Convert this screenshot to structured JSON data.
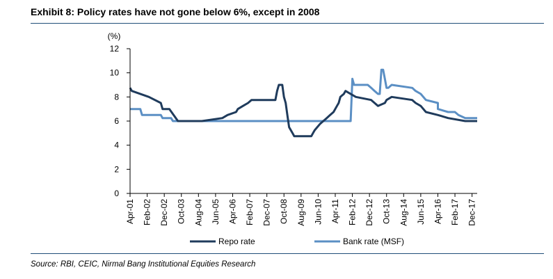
{
  "title": "Exhibit 8: Policy rates have not gone below 6%, except in 2008",
  "source": "Source: RBI, CEIC, Nirmal Bang Institutional Equities Research",
  "colors": {
    "repo": "#1f3b5c",
    "bank": "#5b8fc4",
    "rule": "#1f4e79"
  },
  "chart_data": {
    "type": "line",
    "ylabel": "(%)",
    "ylim": [
      0,
      12
    ],
    "yticks": [
      "0",
      "2",
      "4",
      "6",
      "8",
      "10",
      "12"
    ],
    "x_ticks": [
      "Apr-01",
      "Feb-02",
      "Dec-02",
      "Oct-03",
      "Aug-04",
      "Jun-05",
      "Apr-06",
      "Feb-07",
      "Dec-07",
      "Oct-08",
      "Aug-09",
      "Jun-10",
      "Apr-11",
      "Feb-12",
      "Dec-12",
      "Oct-13",
      "Aug-14",
      "Jun-15",
      "Apr-16",
      "Feb-17",
      "Dec-17"
    ],
    "legend_position": "bottom",
    "series": [
      {
        "name": "Repo rate",
        "color": "#1f3b5c",
        "points": [
          [
            "Apr-01",
            8.75
          ],
          [
            "May-01",
            8.5
          ],
          [
            "Mar-02",
            8.0
          ],
          [
            "Oct-02",
            7.5
          ],
          [
            "Nov-02",
            7.0
          ],
          [
            "Mar-03",
            7.0
          ],
          [
            "Aug-03",
            6.0
          ],
          [
            "Oct-04",
            6.0
          ],
          [
            "Oct-05",
            6.25
          ],
          [
            "Jan-06",
            6.5
          ],
          [
            "Jun-06",
            6.75
          ],
          [
            "Jul-06",
            7.0
          ],
          [
            "Oct-06",
            7.25
          ],
          [
            "Jan-07",
            7.5
          ],
          [
            "Mar-07",
            7.75
          ],
          [
            "May-08",
            7.75
          ],
          [
            "Jun-08",
            8.5
          ],
          [
            "Jul-08",
            9.0
          ],
          [
            "Sep-08",
            9.0
          ],
          [
            "Oct-08",
            8.0
          ],
          [
            "Nov-08",
            7.5
          ],
          [
            "Dec-08",
            6.5
          ],
          [
            "Jan-09",
            5.5
          ],
          [
            "Mar-09",
            5.0
          ],
          [
            "Apr-09",
            4.75
          ],
          [
            "Feb-10",
            4.75
          ],
          [
            "Mar-10",
            5.0
          ],
          [
            "Apr-10",
            5.25
          ],
          [
            "Jul-10",
            5.75
          ],
          [
            "Sep-10",
            6.0
          ],
          [
            "Nov-10",
            6.25
          ],
          [
            "Jan-11",
            6.5
          ],
          [
            "Mar-11",
            6.75
          ],
          [
            "May-11",
            7.25
          ],
          [
            "Jun-11",
            7.5
          ],
          [
            "Jul-11",
            8.0
          ],
          [
            "Sep-11",
            8.25
          ],
          [
            "Oct-11",
            8.5
          ],
          [
            "Apr-12",
            8.0
          ],
          [
            "Jan-13",
            7.75
          ],
          [
            "Mar-13",
            7.5
          ],
          [
            "May-13",
            7.25
          ],
          [
            "Sep-13",
            7.5
          ],
          [
            "Oct-13",
            7.75
          ],
          [
            "Jan-14",
            8.0
          ],
          [
            "Jan-15",
            7.75
          ],
          [
            "Mar-15",
            7.5
          ],
          [
            "Jun-15",
            7.25
          ],
          [
            "Sep-15",
            6.75
          ],
          [
            "Apr-16",
            6.5
          ],
          [
            "Oct-16",
            6.25
          ],
          [
            "Aug-17",
            6.0
          ],
          [
            "Mar-18",
            6.0
          ]
        ]
      },
      {
        "name": "Bank rate (MSF)",
        "color": "#5b8fc4",
        "points": [
          [
            "Apr-01",
            7.0
          ],
          [
            "Oct-01",
            7.0
          ],
          [
            "Nov-01",
            6.5
          ],
          [
            "Oct-02",
            6.5
          ],
          [
            "Nov-02",
            6.25
          ],
          [
            "Apr-03",
            6.25
          ],
          [
            "May-03",
            6.0
          ],
          [
            "Jan-12",
            6.0
          ],
          [
            "Feb-12",
            9.5
          ],
          [
            "Mar-12",
            9.0
          ],
          [
            "Apr-12",
            9.0
          ],
          [
            "Nov-12",
            9.0
          ],
          [
            "Jan-13",
            8.75
          ],
          [
            "Mar-13",
            8.5
          ],
          [
            "May-13",
            8.25
          ],
          [
            "Jun-13",
            8.25
          ],
          [
            "Jul-13",
            10.25
          ],
          [
            "Aug-13",
            10.25
          ],
          [
            "Sep-13",
            9.5
          ],
          [
            "Oct-13",
            8.75
          ],
          [
            "Nov-13",
            8.75
          ],
          [
            "Jan-14",
            9.0
          ],
          [
            "Jan-15",
            8.75
          ],
          [
            "Mar-15",
            8.5
          ],
          [
            "Jun-15",
            8.25
          ],
          [
            "Sep-15",
            7.75
          ],
          [
            "Apr-16",
            7.5
          ],
          [
            "Apr-16",
            7.0
          ],
          [
            "Oct-16",
            6.75
          ],
          [
            "Feb-17",
            6.75
          ],
          [
            "Apr-17",
            6.5
          ],
          [
            "Aug-17",
            6.25
          ],
          [
            "Mar-18",
            6.25
          ]
        ]
      }
    ]
  }
}
